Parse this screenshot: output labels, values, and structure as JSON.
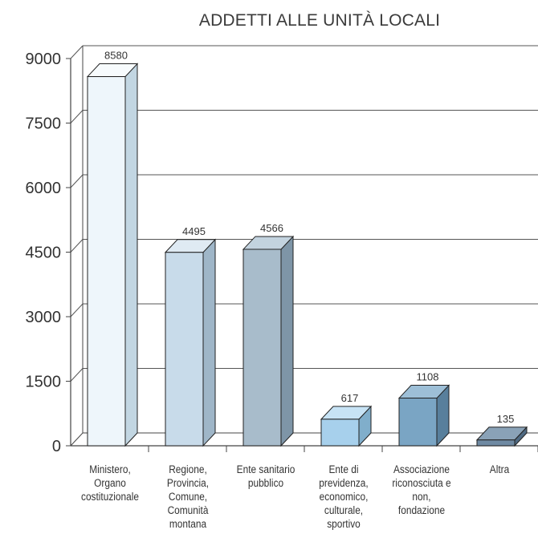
{
  "chart_data": {
    "type": "bar",
    "title": "ADDETTI ALLE UNITÀ LOCALI",
    "categories": [
      [
        "Ministero,",
        "Organo",
        "costituzionale"
      ],
      [
        "Regione,",
        "Provincia,",
        "Comune,",
        "Comunità",
        "montana"
      ],
      [
        "Ente sanitario",
        "pubblico"
      ],
      [
        "Ente di",
        "previdenza,",
        "economico,",
        "culturale,",
        "sportivo"
      ],
      [
        "Associazione",
        "riconosciuta e",
        "non,",
        "fondazione"
      ],
      [
        "Altra"
      ]
    ],
    "values": [
      8580,
      4495,
      4566,
      617,
      1108,
      135
    ],
    "value_labels": [
      "8580",
      "4495",
      "4566",
      "617",
      "1108",
      "135"
    ],
    "y_ticks": [
      "0",
      "1500",
      "3000",
      "4500",
      "6000",
      "7500",
      "9000"
    ],
    "ylim": [
      0,
      9000
    ],
    "grid": true,
    "style": "3d-bar",
    "colors": {
      "bar_fronts": [
        "#eef6fb",
        "#c8dbea",
        "#a8bccb",
        "#a7d0ec",
        "#7aa5c4",
        "#6f8aa3"
      ],
      "bar_sides": [
        "#c2d6e2",
        "#9fb6c8",
        "#7e95a7",
        "#80aecb",
        "#587f9c",
        "#4f6a82"
      ],
      "bar_tops": [
        "#f7fbfd",
        "#dfeaf3",
        "#c3d3df",
        "#c7e3f5",
        "#9dbfd7",
        "#8aa2b7"
      ]
    }
  }
}
